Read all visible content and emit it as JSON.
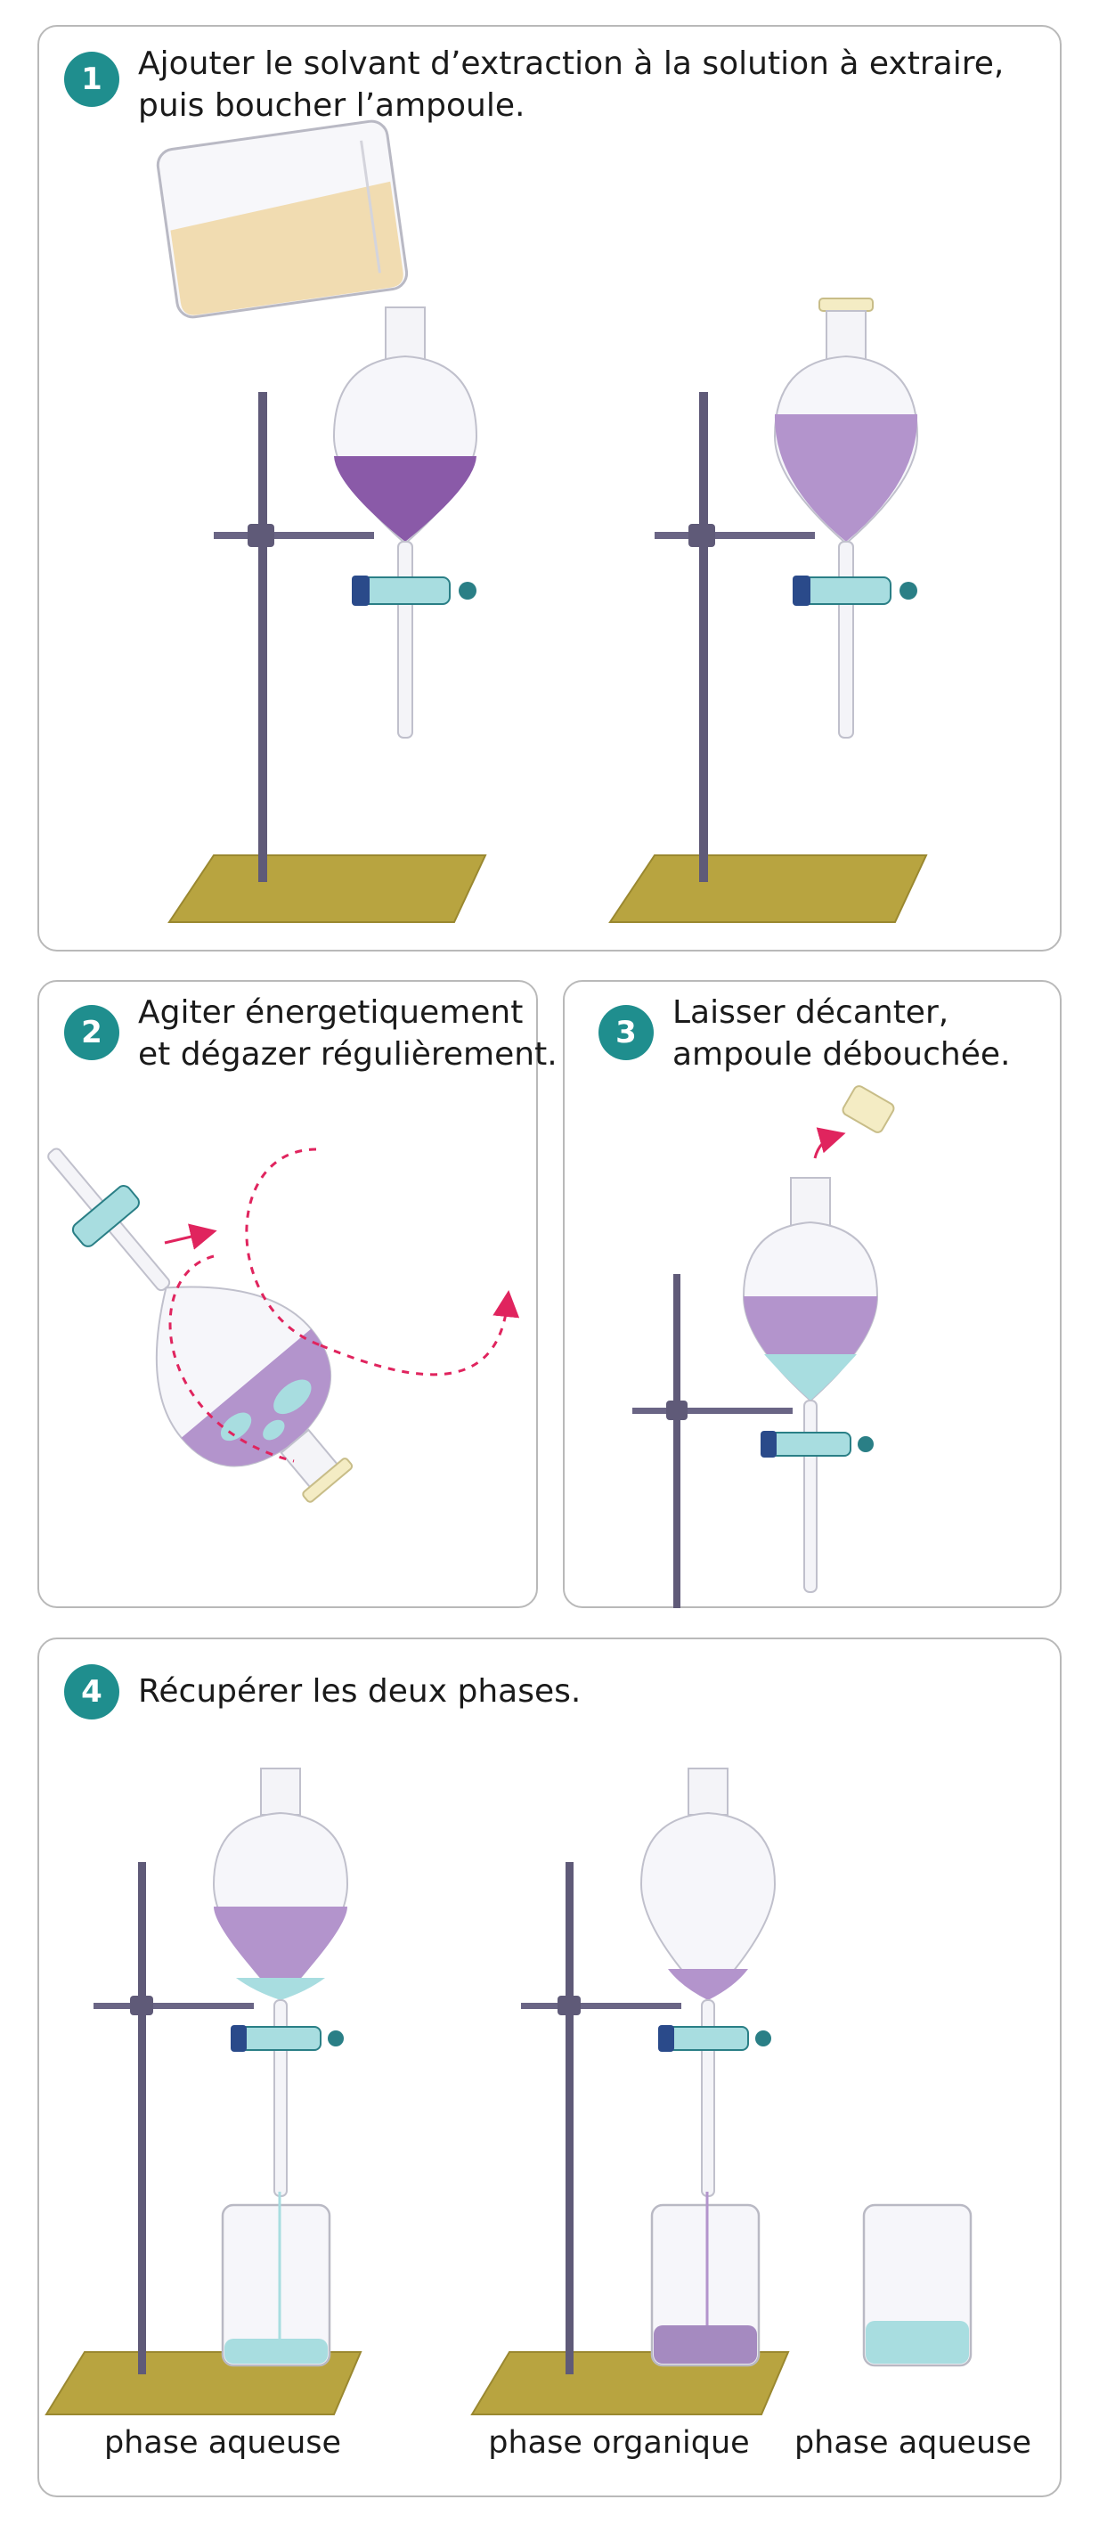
{
  "steps": [
    {
      "number": "1",
      "text": "Ajouter le solvant d’extraction à la solution à extraire,\npuis boucher l’ampoule."
    },
    {
      "number": "2",
      "text": "Agiter énergetiquement\net dégazer régulièrement."
    },
    {
      "number": "3",
      "text": "Laisser décanter,\nampoule débouchée."
    },
    {
      "number": "4",
      "text": "Récupérer les deux phases."
    }
  ],
  "captions": {
    "left": "phase aqueuse",
    "middle": "phase organique",
    "right": "phase aqueuse"
  },
  "colors": {
    "accent": "#1f8e8e",
    "organic": "#8a5aa8",
    "aqueous": "#a8dde0",
    "base": "#b8a440",
    "stand": "#5f5a78",
    "arrow": "#e0245e",
    "stopper": "#f4ecc4",
    "solvent": "#f0d8a8"
  }
}
